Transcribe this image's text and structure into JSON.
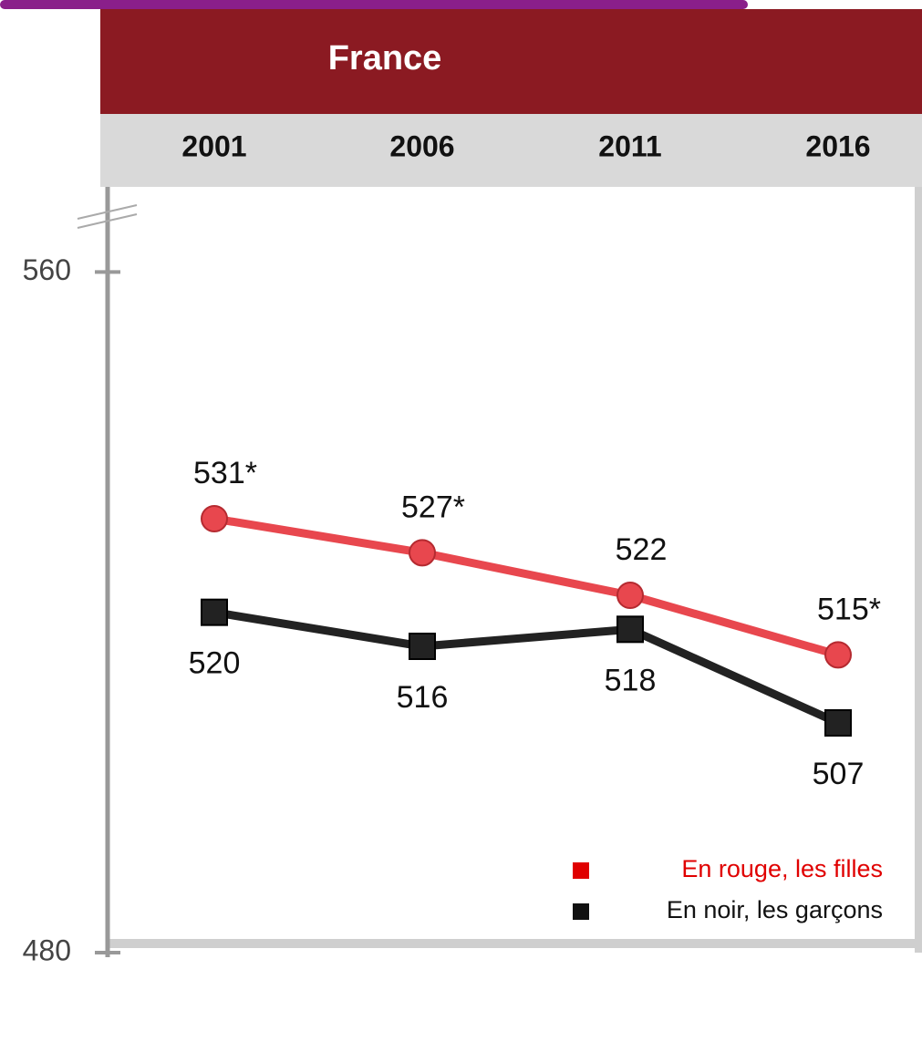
{
  "chart_data": {
    "type": "line",
    "title": "France",
    "categories": [
      "2001",
      "2006",
      "2011",
      "2016"
    ],
    "series": [
      {
        "name": "En rouge, les filles",
        "color": "#e8474e",
        "values": [
          531,
          527,
          522,
          515
        ],
        "value_labels": [
          "531*",
          "527*",
          "522",
          "515*"
        ]
      },
      {
        "name": "En noir, les garçons",
        "color": "#222222",
        "values": [
          520,
          516,
          518,
          507
        ]
      }
    ],
    "ylim": [
      480,
      570
    ],
    "yticks": [
      560,
      480
    ],
    "legend": "lower right"
  }
}
